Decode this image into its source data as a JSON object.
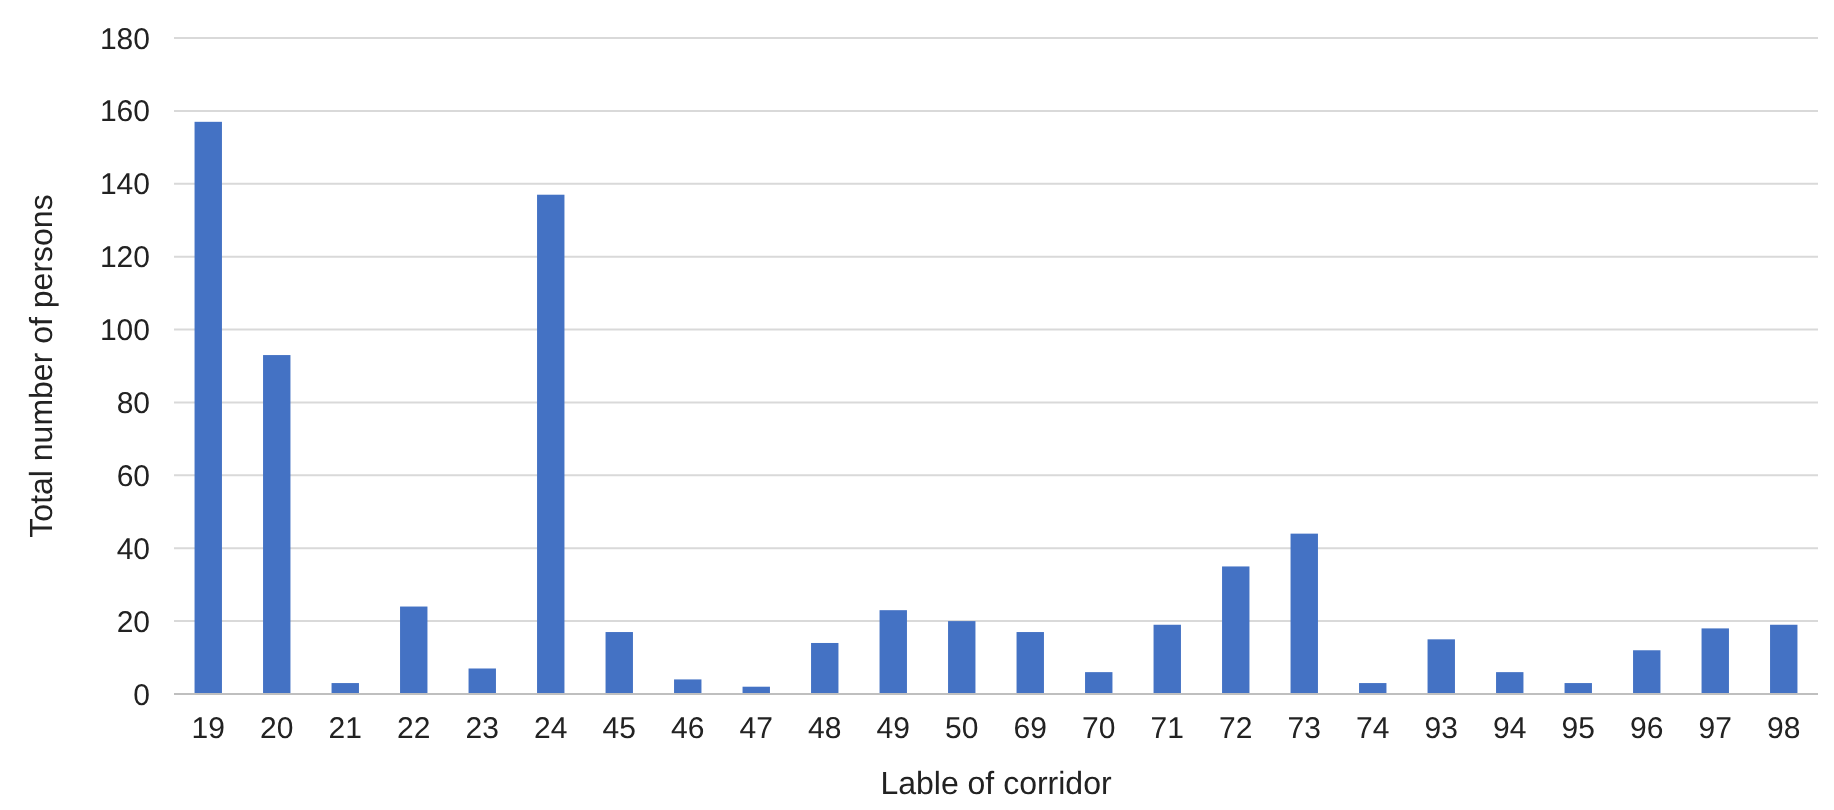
{
  "chart_data": {
    "type": "bar",
    "xlabel": "Lable of corridor",
    "ylabel": "Total number of persons",
    "categories": [
      "19",
      "20",
      "21",
      "22",
      "23",
      "24",
      "45",
      "46",
      "47",
      "48",
      "49",
      "50",
      "69",
      "70",
      "71",
      "72",
      "73",
      "74",
      "93",
      "94",
      "95",
      "96",
      "97",
      "98"
    ],
    "values": [
      157,
      93,
      3,
      24,
      7,
      137,
      17,
      4,
      2,
      14,
      23,
      20,
      17,
      6,
      19,
      35,
      44,
      3,
      15,
      6,
      3,
      12,
      18,
      19
    ],
    "color": "#4472c4",
    "ylim": [
      0,
      180
    ],
    "yticks": [
      0,
      20,
      40,
      60,
      80,
      100,
      120,
      140,
      160,
      180
    ],
    "grid": "y"
  }
}
